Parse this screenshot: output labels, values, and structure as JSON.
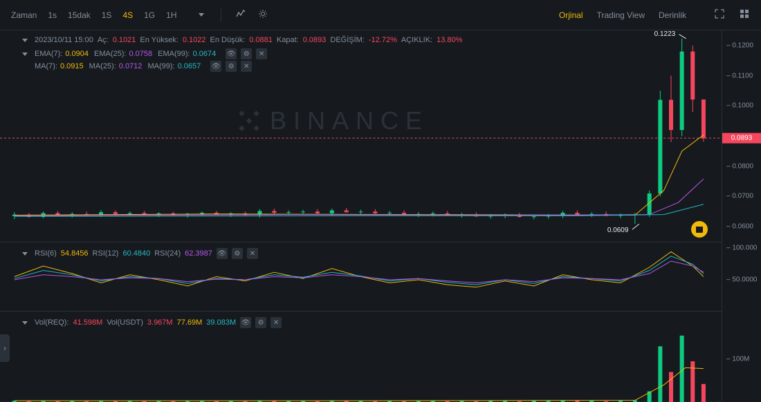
{
  "colors": {
    "bg": "#161a1e",
    "grid": "#2b3139",
    "text_muted": "#848e9c",
    "text_light": "#eaecef",
    "accent": "#f0b90b",
    "green": "#0ecb81",
    "red": "#f6465d",
    "cyan": "#25b8c4",
    "purple": "#b955eb",
    "orange": "#f0b90b"
  },
  "toolbar": {
    "label_time": "Zaman",
    "timeframes": [
      {
        "label": "1s",
        "active": false
      },
      {
        "label": "15dak",
        "active": false
      },
      {
        "label": "1S",
        "active": false
      },
      {
        "label": "4S",
        "active": true
      },
      {
        "label": "1G",
        "active": false
      },
      {
        "label": "1H",
        "active": false
      }
    ],
    "views": [
      {
        "label": "Orjinal",
        "active": true
      },
      {
        "label": "Trading View",
        "active": false
      },
      {
        "label": "Derinlik",
        "active": false
      }
    ]
  },
  "ohlc": {
    "datetime": "2023/10/11 15:00",
    "open_label": "Aç:",
    "open": "0.1021",
    "open_color": "#f6465d",
    "high_label": "En Yüksek:",
    "high": "0.1022",
    "high_color": "#f6465d",
    "low_label": "En Düşük:",
    "low": "0.0881",
    "low_color": "#f6465d",
    "close_label": "Kapat:",
    "close": "0.0893",
    "close_color": "#f6465d",
    "change_label": "DEĞİŞİM:",
    "change": "-12.72%",
    "change_color": "#f6465d",
    "amp_label": "AÇIKLIK:",
    "amp": "13.80%",
    "amp_color": "#f6465d"
  },
  "ema": {
    "items": [
      {
        "label": "EMA(7):",
        "value": "0.0904",
        "color": "#f0b90b"
      },
      {
        "label": "EMA(25):",
        "value": "0.0758",
        "color": "#b955eb"
      },
      {
        "label": "EMA(99):",
        "value": "0.0674",
        "color": "#25b8c4"
      }
    ]
  },
  "ma": {
    "items": [
      {
        "label": "MA(7):",
        "value": "0.0915",
        "color": "#f0b90b"
      },
      {
        "label": "MA(25):",
        "value": "0.0712",
        "color": "#b955eb"
      },
      {
        "label": "MA(99):",
        "value": "0.0657",
        "color": "#25b8c4"
      }
    ]
  },
  "main_chart": {
    "type": "candlestick",
    "ymin": 0.055,
    "ymax": 0.125,
    "yticks": [
      {
        "v": 0.06,
        "label": "0.0600"
      },
      {
        "v": 0.07,
        "label": "0.0700"
      },
      {
        "v": 0.08,
        "label": "0.0800"
      },
      {
        "v": 0.1,
        "label": "0.1000"
      },
      {
        "v": 0.11,
        "label": "0.1100"
      },
      {
        "v": 0.12,
        "label": "0.1200"
      }
    ],
    "current_price": 0.0893,
    "current_price_label": "0.0893",
    "high_marker": {
      "value": 0.1223,
      "label": "0.1223"
    },
    "low_marker": {
      "value": 0.0609,
      "label": "0.0609"
    },
    "candles": [
      {
        "x": 0.02,
        "o": 0.0635,
        "h": 0.0648,
        "l": 0.0625,
        "c": 0.064,
        "up": true
      },
      {
        "x": 0.04,
        "o": 0.064,
        "h": 0.0645,
        "l": 0.063,
        "c": 0.0632,
        "up": false
      },
      {
        "x": 0.06,
        "o": 0.0632,
        "h": 0.065,
        "l": 0.0628,
        "c": 0.0645,
        "up": true
      },
      {
        "x": 0.08,
        "o": 0.0645,
        "h": 0.0652,
        "l": 0.0635,
        "c": 0.0638,
        "up": false
      },
      {
        "x": 0.1,
        "o": 0.0638,
        "h": 0.0648,
        "l": 0.063,
        "c": 0.0642,
        "up": true
      },
      {
        "x": 0.12,
        "o": 0.0642,
        "h": 0.065,
        "l": 0.0635,
        "c": 0.064,
        "up": false
      },
      {
        "x": 0.14,
        "o": 0.064,
        "h": 0.0655,
        "l": 0.0632,
        "c": 0.0648,
        "up": true
      },
      {
        "x": 0.16,
        "o": 0.0648,
        "h": 0.0654,
        "l": 0.0638,
        "c": 0.0642,
        "up": false
      },
      {
        "x": 0.18,
        "o": 0.0642,
        "h": 0.065,
        "l": 0.0635,
        "c": 0.0645,
        "up": true
      },
      {
        "x": 0.2,
        "o": 0.0645,
        "h": 0.0652,
        "l": 0.0638,
        "c": 0.064,
        "up": false
      },
      {
        "x": 0.22,
        "o": 0.064,
        "h": 0.0648,
        "l": 0.0632,
        "c": 0.0644,
        "up": true
      },
      {
        "x": 0.24,
        "o": 0.0644,
        "h": 0.065,
        "l": 0.0636,
        "c": 0.0638,
        "up": false
      },
      {
        "x": 0.26,
        "o": 0.0638,
        "h": 0.0646,
        "l": 0.063,
        "c": 0.0642,
        "up": true
      },
      {
        "x": 0.28,
        "o": 0.0642,
        "h": 0.065,
        "l": 0.0635,
        "c": 0.0646,
        "up": true
      },
      {
        "x": 0.3,
        "o": 0.0646,
        "h": 0.0652,
        "l": 0.0638,
        "c": 0.064,
        "up": false
      },
      {
        "x": 0.32,
        "o": 0.064,
        "h": 0.0648,
        "l": 0.0632,
        "c": 0.0644,
        "up": true
      },
      {
        "x": 0.34,
        "o": 0.0644,
        "h": 0.065,
        "l": 0.0636,
        "c": 0.0638,
        "up": false
      },
      {
        "x": 0.36,
        "o": 0.0638,
        "h": 0.0658,
        "l": 0.063,
        "c": 0.0652,
        "up": true
      },
      {
        "x": 0.38,
        "o": 0.0652,
        "h": 0.066,
        "l": 0.0642,
        "c": 0.0646,
        "up": false
      },
      {
        "x": 0.4,
        "o": 0.0646,
        "h": 0.0654,
        "l": 0.0638,
        "c": 0.0648,
        "up": true
      },
      {
        "x": 0.42,
        "o": 0.0648,
        "h": 0.0656,
        "l": 0.064,
        "c": 0.065,
        "up": true
      },
      {
        "x": 0.44,
        "o": 0.065,
        "h": 0.0658,
        "l": 0.0642,
        "c": 0.0644,
        "up": false
      },
      {
        "x": 0.46,
        "o": 0.0644,
        "h": 0.066,
        "l": 0.0636,
        "c": 0.0654,
        "up": true
      },
      {
        "x": 0.48,
        "o": 0.0654,
        "h": 0.0662,
        "l": 0.0646,
        "c": 0.0648,
        "up": false
      },
      {
        "x": 0.5,
        "o": 0.0648,
        "h": 0.0656,
        "l": 0.064,
        "c": 0.065,
        "up": true
      },
      {
        "x": 0.52,
        "o": 0.065,
        "h": 0.0658,
        "l": 0.0642,
        "c": 0.0644,
        "up": false
      },
      {
        "x": 0.54,
        "o": 0.0644,
        "h": 0.0652,
        "l": 0.0636,
        "c": 0.0646,
        "up": true
      },
      {
        "x": 0.56,
        "o": 0.0646,
        "h": 0.0654,
        "l": 0.0638,
        "c": 0.064,
        "up": false
      },
      {
        "x": 0.58,
        "o": 0.064,
        "h": 0.0648,
        "l": 0.0632,
        "c": 0.0642,
        "up": true
      },
      {
        "x": 0.6,
        "o": 0.0642,
        "h": 0.065,
        "l": 0.0634,
        "c": 0.0644,
        "up": true
      },
      {
        "x": 0.62,
        "o": 0.0644,
        "h": 0.0652,
        "l": 0.0636,
        "c": 0.0638,
        "up": false
      },
      {
        "x": 0.64,
        "o": 0.0638,
        "h": 0.0646,
        "l": 0.063,
        "c": 0.064,
        "up": true
      },
      {
        "x": 0.66,
        "o": 0.064,
        "h": 0.0648,
        "l": 0.0632,
        "c": 0.0634,
        "up": false
      },
      {
        "x": 0.68,
        "o": 0.0634,
        "h": 0.0642,
        "l": 0.0626,
        "c": 0.0636,
        "up": true
      },
      {
        "x": 0.7,
        "o": 0.0636,
        "h": 0.0644,
        "l": 0.0628,
        "c": 0.0638,
        "up": true
      },
      {
        "x": 0.72,
        "o": 0.0638,
        "h": 0.0646,
        "l": 0.063,
        "c": 0.0632,
        "up": false
      },
      {
        "x": 0.74,
        "o": 0.0632,
        "h": 0.064,
        "l": 0.0624,
        "c": 0.0634,
        "up": true
      },
      {
        "x": 0.76,
        "o": 0.0634,
        "h": 0.0642,
        "l": 0.0626,
        "c": 0.0636,
        "up": true
      },
      {
        "x": 0.78,
        "o": 0.0636,
        "h": 0.0652,
        "l": 0.0628,
        "c": 0.0646,
        "up": true
      },
      {
        "x": 0.8,
        "o": 0.0646,
        "h": 0.0654,
        "l": 0.0638,
        "c": 0.064,
        "up": false
      },
      {
        "x": 0.82,
        "o": 0.064,
        "h": 0.0648,
        "l": 0.0632,
        "c": 0.0642,
        "up": true
      },
      {
        "x": 0.84,
        "o": 0.0642,
        "h": 0.065,
        "l": 0.0634,
        "c": 0.0636,
        "up": false
      },
      {
        "x": 0.86,
        "o": 0.0636,
        "h": 0.0644,
        "l": 0.0628,
        "c": 0.0638,
        "up": true
      },
      {
        "x": 0.88,
        "o": 0.0638,
        "h": 0.0646,
        "l": 0.0609,
        "c": 0.064,
        "up": true
      },
      {
        "x": 0.9,
        "o": 0.064,
        "h": 0.072,
        "l": 0.0632,
        "c": 0.071,
        "up": true
      },
      {
        "x": 0.915,
        "o": 0.071,
        "h": 0.105,
        "l": 0.07,
        "c": 0.102,
        "up": true
      },
      {
        "x": 0.93,
        "o": 0.102,
        "h": 0.11,
        "l": 0.088,
        "c": 0.092,
        "up": false
      },
      {
        "x": 0.945,
        "o": 0.092,
        "h": 0.1223,
        "l": 0.09,
        "c": 0.118,
        "up": true
      },
      {
        "x": 0.96,
        "o": 0.118,
        "h": 0.12,
        "l": 0.098,
        "c": 0.1021,
        "up": false
      },
      {
        "x": 0.975,
        "o": 0.1021,
        "h": 0.1022,
        "l": 0.0881,
        "c": 0.0893,
        "up": false
      }
    ],
    "ema7_line": [
      [
        0.02,
        0.0638
      ],
      [
        0.3,
        0.0642
      ],
      [
        0.6,
        0.064
      ],
      [
        0.88,
        0.0638
      ],
      [
        0.92,
        0.072
      ],
      [
        0.945,
        0.085
      ],
      [
        0.975,
        0.0904
      ]
    ],
    "ema25_line": [
      [
        0.02,
        0.0636
      ],
      [
        0.4,
        0.064
      ],
      [
        0.7,
        0.0638
      ],
      [
        0.9,
        0.064
      ],
      [
        0.94,
        0.068
      ],
      [
        0.975,
        0.0758
      ]
    ],
    "ema99_line": [
      [
        0.02,
        0.0634
      ],
      [
        0.5,
        0.0636
      ],
      [
        0.8,
        0.0636
      ],
      [
        0.92,
        0.064
      ],
      [
        0.975,
        0.0674
      ]
    ]
  },
  "rsi": {
    "label1": "RSI(6)",
    "value1": "54.8456",
    "color1": "#f0b90b",
    "label2": "RSI(12)",
    "value2": "60.4840",
    "color2": "#25b8c4",
    "label3": "RSI(24)",
    "value3": "62.3987",
    "color3": "#b955eb",
    "ymin": 0,
    "ymax": 110,
    "yticks": [
      {
        "v": 50,
        "label": "50.0000"
      },
      {
        "v": 100,
        "label": "100.000"
      }
    ],
    "line1": [
      [
        0.02,
        55
      ],
      [
        0.06,
        72
      ],
      [
        0.1,
        60
      ],
      [
        0.14,
        45
      ],
      [
        0.18,
        58
      ],
      [
        0.22,
        50
      ],
      [
        0.26,
        40
      ],
      [
        0.3,
        55
      ],
      [
        0.34,
        48
      ],
      [
        0.38,
        62
      ],
      [
        0.42,
        52
      ],
      [
        0.46,
        68
      ],
      [
        0.5,
        55
      ],
      [
        0.54,
        45
      ],
      [
        0.58,
        50
      ],
      [
        0.62,
        42
      ],
      [
        0.66,
        38
      ],
      [
        0.7,
        48
      ],
      [
        0.74,
        40
      ],
      [
        0.78,
        58
      ],
      [
        0.82,
        50
      ],
      [
        0.86,
        45
      ],
      [
        0.9,
        70
      ],
      [
        0.93,
        95
      ],
      [
        0.96,
        72
      ],
      [
        0.975,
        55
      ]
    ],
    "line2": [
      [
        0.02,
        52
      ],
      [
        0.06,
        65
      ],
      [
        0.1,
        58
      ],
      [
        0.14,
        48
      ],
      [
        0.18,
        55
      ],
      [
        0.22,
        52
      ],
      [
        0.26,
        44
      ],
      [
        0.3,
        52
      ],
      [
        0.34,
        50
      ],
      [
        0.38,
        58
      ],
      [
        0.42,
        54
      ],
      [
        0.46,
        62
      ],
      [
        0.5,
        56
      ],
      [
        0.54,
        48
      ],
      [
        0.58,
        52
      ],
      [
        0.62,
        46
      ],
      [
        0.66,
        42
      ],
      [
        0.7,
        50
      ],
      [
        0.74,
        44
      ],
      [
        0.78,
        55
      ],
      [
        0.82,
        52
      ],
      [
        0.86,
        48
      ],
      [
        0.9,
        65
      ],
      [
        0.93,
        88
      ],
      [
        0.96,
        75
      ],
      [
        0.975,
        60
      ]
    ],
    "line3": [
      [
        0.02,
        50
      ],
      [
        0.06,
        58
      ],
      [
        0.1,
        55
      ],
      [
        0.14,
        50
      ],
      [
        0.18,
        53
      ],
      [
        0.22,
        52
      ],
      [
        0.26,
        47
      ],
      [
        0.3,
        51
      ],
      [
        0.34,
        50
      ],
      [
        0.38,
        55
      ],
      [
        0.42,
        53
      ],
      [
        0.46,
        58
      ],
      [
        0.5,
        55
      ],
      [
        0.54,
        50
      ],
      [
        0.58,
        52
      ],
      [
        0.62,
        48
      ],
      [
        0.66,
        45
      ],
      [
        0.7,
        50
      ],
      [
        0.74,
        47
      ],
      [
        0.78,
        53
      ],
      [
        0.82,
        52
      ],
      [
        0.86,
        50
      ],
      [
        0.9,
        60
      ],
      [
        0.93,
        80
      ],
      [
        0.96,
        72
      ],
      [
        0.975,
        62
      ]
    ]
  },
  "volume": {
    "label1": "Vol(REQ):",
    "value1": "41.598M",
    "color1": "#f6465d",
    "label2": "Vol(USDT)",
    "value2": "3.967M",
    "color2": "#f6465d",
    "value3": "77.69M",
    "color3": "#f0b90b",
    "value4": "39.083M",
    "color4": "#25b8c4",
    "ymax": 160,
    "yticks": [
      {
        "v": 100,
        "label": "100M"
      }
    ],
    "bars": [
      {
        "x": 0.02,
        "v": 3,
        "up": true
      },
      {
        "x": 0.04,
        "v": 2,
        "up": false
      },
      {
        "x": 0.06,
        "v": 3,
        "up": true
      },
      {
        "x": 0.08,
        "v": 2,
        "up": false
      },
      {
        "x": 0.1,
        "v": 3,
        "up": true
      },
      {
        "x": 0.12,
        "v": 2,
        "up": false
      },
      {
        "x": 0.14,
        "v": 3,
        "up": true
      },
      {
        "x": 0.16,
        "v": 2,
        "up": false
      },
      {
        "x": 0.18,
        "v": 3,
        "up": true
      },
      {
        "x": 0.2,
        "v": 2,
        "up": false
      },
      {
        "x": 0.22,
        "v": 3,
        "up": true
      },
      {
        "x": 0.24,
        "v": 2,
        "up": false
      },
      {
        "x": 0.26,
        "v": 3,
        "up": true
      },
      {
        "x": 0.28,
        "v": 3,
        "up": true
      },
      {
        "x": 0.3,
        "v": 2,
        "up": false
      },
      {
        "x": 0.32,
        "v": 3,
        "up": true
      },
      {
        "x": 0.34,
        "v": 2,
        "up": false
      },
      {
        "x": 0.36,
        "v": 4,
        "up": true
      },
      {
        "x": 0.38,
        "v": 3,
        "up": false
      },
      {
        "x": 0.4,
        "v": 3,
        "up": true
      },
      {
        "x": 0.42,
        "v": 3,
        "up": true
      },
      {
        "x": 0.44,
        "v": 2,
        "up": false
      },
      {
        "x": 0.46,
        "v": 4,
        "up": true
      },
      {
        "x": 0.48,
        "v": 3,
        "up": false
      },
      {
        "x": 0.5,
        "v": 3,
        "up": true
      },
      {
        "x": 0.52,
        "v": 2,
        "up": false
      },
      {
        "x": 0.54,
        "v": 3,
        "up": true
      },
      {
        "x": 0.56,
        "v": 2,
        "up": false
      },
      {
        "x": 0.58,
        "v": 3,
        "up": true
      },
      {
        "x": 0.6,
        "v": 3,
        "up": true
      },
      {
        "x": 0.62,
        "v": 2,
        "up": false
      },
      {
        "x": 0.64,
        "v": 3,
        "up": true
      },
      {
        "x": 0.66,
        "v": 2,
        "up": false
      },
      {
        "x": 0.68,
        "v": 3,
        "up": true
      },
      {
        "x": 0.7,
        "v": 3,
        "up": true
      },
      {
        "x": 0.72,
        "v": 2,
        "up": false
      },
      {
        "x": 0.74,
        "v": 3,
        "up": true
      },
      {
        "x": 0.76,
        "v": 3,
        "up": true
      },
      {
        "x": 0.78,
        "v": 4,
        "up": true
      },
      {
        "x": 0.8,
        "v": 3,
        "up": false
      },
      {
        "x": 0.82,
        "v": 3,
        "up": true
      },
      {
        "x": 0.84,
        "v": 2,
        "up": false
      },
      {
        "x": 0.86,
        "v": 3,
        "up": true
      },
      {
        "x": 0.88,
        "v": 4,
        "up": true
      },
      {
        "x": 0.9,
        "v": 25,
        "up": true
      },
      {
        "x": 0.915,
        "v": 130,
        "up": true
      },
      {
        "x": 0.93,
        "v": 70,
        "up": false
      },
      {
        "x": 0.945,
        "v": 155,
        "up": true
      },
      {
        "x": 0.96,
        "v": 95,
        "up": false
      },
      {
        "x": 0.975,
        "v": 42,
        "up": false
      }
    ],
    "ma_line": [
      [
        0.02,
        3
      ],
      [
        0.5,
        3
      ],
      [
        0.88,
        4
      ],
      [
        0.92,
        40
      ],
      [
        0.95,
        80
      ],
      [
        0.975,
        78
      ]
    ]
  },
  "watermark": "BINANCE"
}
